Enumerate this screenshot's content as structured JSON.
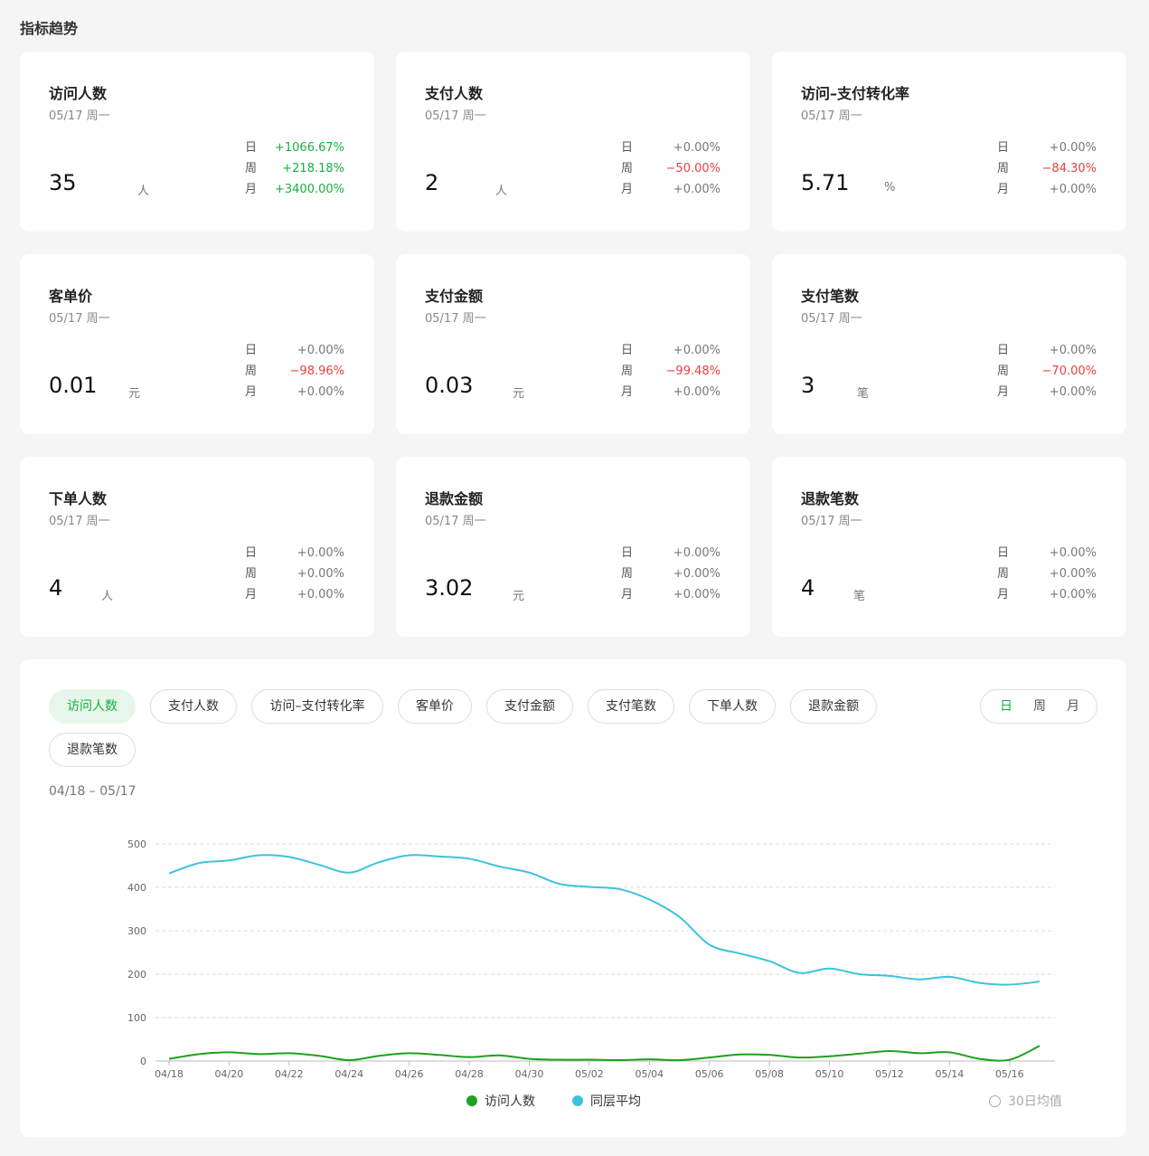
{
  "section_title": "指标趋势",
  "cards": [
    {
      "title": "访问人数",
      "date": "05/17 周一",
      "value": "35",
      "unit": "人",
      "cmp": [
        {
          "label": "日",
          "value": "+1066.67%",
          "trend": "up"
        },
        {
          "label": "周",
          "value": "+218.18%",
          "trend": "up"
        },
        {
          "label": "月",
          "value": "+3400.00%",
          "trend": "up"
        }
      ]
    },
    {
      "title": "支付人数",
      "date": "05/17 周一",
      "value": "2",
      "unit": "人",
      "cmp": [
        {
          "label": "日",
          "value": "+0.00%",
          "trend": "flat"
        },
        {
          "label": "周",
          "value": "−50.00%",
          "trend": "down"
        },
        {
          "label": "月",
          "value": "+0.00%",
          "trend": "flat"
        }
      ]
    },
    {
      "title": "访问–支付转化率",
      "date": "05/17 周一",
      "value": "5.71",
      "unit": "%",
      "cmp": [
        {
          "label": "日",
          "value": "+0.00%",
          "trend": "flat"
        },
        {
          "label": "周",
          "value": "−84.30%",
          "trend": "down"
        },
        {
          "label": "月",
          "value": "+0.00%",
          "trend": "flat"
        }
      ]
    },
    {
      "title": "客单价",
      "date": "05/17 周一",
      "value": "0.01",
      "unit": "元",
      "cmp": [
        {
          "label": "日",
          "value": "+0.00%",
          "trend": "flat"
        },
        {
          "label": "周",
          "value": "−98.96%",
          "trend": "down"
        },
        {
          "label": "月",
          "value": "+0.00%",
          "trend": "flat"
        }
      ]
    },
    {
      "title": "支付金额",
      "date": "05/17 周一",
      "value": "0.03",
      "unit": "元",
      "cmp": [
        {
          "label": "日",
          "value": "+0.00%",
          "trend": "flat"
        },
        {
          "label": "周",
          "value": "−99.48%",
          "trend": "down"
        },
        {
          "label": "月",
          "value": "+0.00%",
          "trend": "flat"
        }
      ]
    },
    {
      "title": "支付笔数",
      "date": "05/17 周一",
      "value": "3",
      "unit": "笔",
      "cmp": [
        {
          "label": "日",
          "value": "+0.00%",
          "trend": "flat"
        },
        {
          "label": "周",
          "value": "−70.00%",
          "trend": "down"
        },
        {
          "label": "月",
          "value": "+0.00%",
          "trend": "flat"
        }
      ]
    },
    {
      "title": "下单人数",
      "date": "05/17 周一",
      "value": "4",
      "unit": "人",
      "cmp": [
        {
          "label": "日",
          "value": "+0.00%",
          "trend": "flat"
        },
        {
          "label": "周",
          "value": "+0.00%",
          "trend": "flat"
        },
        {
          "label": "月",
          "value": "+0.00%",
          "trend": "flat"
        }
      ]
    },
    {
      "title": "退款金额",
      "date": "05/17 周一",
      "value": "3.02",
      "unit": "元",
      "cmp": [
        {
          "label": "日",
          "value": "+0.00%",
          "trend": "flat"
        },
        {
          "label": "周",
          "value": "+0.00%",
          "trend": "flat"
        },
        {
          "label": "月",
          "value": "+0.00%",
          "trend": "flat"
        }
      ]
    },
    {
      "title": "退款笔数",
      "date": "05/17 周一",
      "value": "4",
      "unit": "笔",
      "cmp": [
        {
          "label": "日",
          "value": "+0.00%",
          "trend": "flat"
        },
        {
          "label": "周",
          "value": "+0.00%",
          "trend": "flat"
        },
        {
          "label": "月",
          "value": "+0.00%",
          "trend": "flat"
        }
      ]
    }
  ],
  "metric_tabs": [
    {
      "label": "访问人数",
      "active": true
    },
    {
      "label": "支付人数",
      "active": false
    },
    {
      "label": "访问–支付转化率",
      "active": false
    },
    {
      "label": "客单价",
      "active": false
    },
    {
      "label": "支付金额",
      "active": false
    },
    {
      "label": "支付笔数",
      "active": false
    },
    {
      "label": "下单人数",
      "active": false
    },
    {
      "label": "退款金额",
      "active": false
    },
    {
      "label": "退款笔数",
      "active": false
    }
  ],
  "period_tabs": [
    {
      "label": "日",
      "active": true
    },
    {
      "label": "周",
      "active": false
    },
    {
      "label": "月",
      "active": false
    }
  ],
  "date_range": "04/18 – 05/17",
  "avg_toggle_label": "30日均值",
  "colors": {
    "accent": "#17b03e",
    "series_self": "#1fa01f",
    "series_peer": "#3cc3dc",
    "down": "#e94040"
  },
  "chart_data": {
    "type": "line",
    "x": [
      "04/18",
      "04/19",
      "04/20",
      "04/21",
      "04/22",
      "04/23",
      "04/24",
      "04/25",
      "04/26",
      "04/27",
      "04/28",
      "04/29",
      "04/30",
      "05/01",
      "05/02",
      "05/03",
      "05/04",
      "05/05",
      "05/06",
      "05/07",
      "05/08",
      "05/09",
      "05/10",
      "05/11",
      "05/12",
      "05/13",
      "05/14",
      "05/15",
      "05/16",
      "05/17"
    ],
    "x_tick_labels": [
      "04/18",
      "04/20",
      "04/22",
      "04/24",
      "04/26",
      "04/28",
      "04/30",
      "05/02",
      "05/04",
      "05/06",
      "05/08",
      "05/10",
      "05/12",
      "05/14",
      "05/16"
    ],
    "ylim": [
      0,
      500
    ],
    "y_ticks": [
      0,
      100,
      200,
      300,
      400,
      500
    ],
    "grid": true,
    "legend_position": "bottom-center",
    "series": [
      {
        "name": "访问人数",
        "values": [
          5,
          16,
          20,
          16,
          18,
          12,
          2,
          12,
          18,
          14,
          9,
          13,
          5,
          3,
          3,
          2,
          4,
          2,
          8,
          15,
          14,
          8,
          11,
          17,
          23,
          18,
          20,
          5,
          3,
          35
        ]
      },
      {
        "name": "同层平均",
        "values": [
          432,
          456,
          462,
          474,
          470,
          452,
          434,
          458,
          474,
          471,
          466,
          448,
          434,
          408,
          401,
          396,
          372,
          332,
          268,
          248,
          230,
          203,
          213,
          200,
          196,
          188,
          194,
          180,
          176,
          183
        ]
      }
    ]
  }
}
